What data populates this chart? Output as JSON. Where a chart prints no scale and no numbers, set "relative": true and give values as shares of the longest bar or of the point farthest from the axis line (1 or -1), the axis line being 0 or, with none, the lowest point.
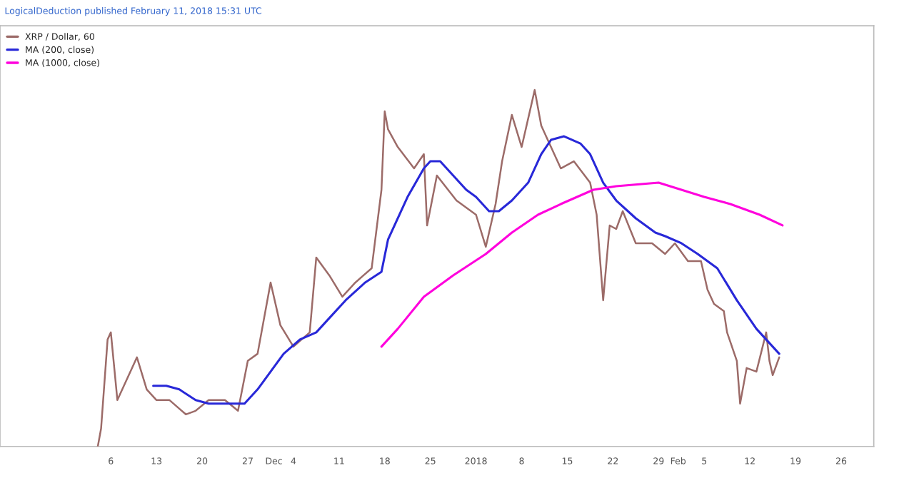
{
  "chart_data": {
    "type": "line",
    "title": "LogicalDeduction published February 11, 2018 15:31 UTC",
    "relative": true,
    "tick_labels": "x",
    "grid": false,
    "legend": "top left",
    "marker": "none",
    "line_style": "solid",
    "xlim": [
      "2017-10-20",
      "2018-03-03"
    ],
    "xticks": [
      {
        "value": "2017-11-06",
        "label": "6"
      },
      {
        "value": "2017-11-13",
        "label": "13"
      },
      {
        "value": "2017-11-20",
        "label": "20"
      },
      {
        "value": "2017-11-27",
        "label": "27"
      },
      {
        "value": "2017-12-01",
        "label": "Dec"
      },
      {
        "value": "2017-12-04",
        "label": "4"
      },
      {
        "value": "2017-12-11",
        "label": "11"
      },
      {
        "value": "2017-12-18",
        "label": "18"
      },
      {
        "value": "2017-12-25",
        "label": "25"
      },
      {
        "value": "2018-01-01",
        "label": "2018"
      },
      {
        "value": "2018-01-08",
        "label": "8"
      },
      {
        "value": "2018-01-15",
        "label": "15"
      },
      {
        "value": "2018-01-22",
        "label": "22"
      },
      {
        "value": "2018-01-29",
        "label": "29"
      },
      {
        "value": "2018-02-01",
        "label": "Feb"
      },
      {
        "value": "2018-02-05",
        "label": "5"
      },
      {
        "value": "2018-02-12",
        "label": "12"
      },
      {
        "value": "2018-02-19",
        "label": "19"
      },
      {
        "value": "2018-02-26",
        "label": "26"
      }
    ],
    "series": [
      {
        "name": "XRP / Dollar, 60",
        "color": "#9c6b68",
        "x": [
          "2017-11-04",
          "2017-11-04T12:00",
          "2017-11-05T12:00",
          "2017-11-06",
          "2017-11-07",
          "2017-11-08",
          "2017-11-10",
          "2017-11-11T12:00",
          "2017-11-13",
          "2017-11-15",
          "2017-11-17T12:00",
          "2017-11-19",
          "2017-11-21",
          "2017-11-23T12:00",
          "2017-11-25T12:00",
          "2017-11-27",
          "2017-11-28T12:00",
          "2017-11-30T12:00",
          "2017-12-02",
          "2017-12-04",
          "2017-12-06T12:00",
          "2017-12-07T12:00",
          "2017-12-09T12:00",
          "2017-12-11T12:00",
          "2017-12-13T12:00",
          "2017-12-16",
          "2017-12-17T12:00",
          "2017-12-18",
          "2017-12-18T12:00",
          "2017-12-20",
          "2017-12-22T12:00",
          "2017-12-24",
          "2017-12-24T12:00",
          "2017-12-26",
          "2017-12-29",
          "2018-01-01",
          "2018-01-02T12:00",
          "2018-01-04",
          "2018-01-05",
          "2018-01-06T12:00",
          "2018-01-08",
          "2018-01-10",
          "2018-01-11",
          "2018-01-12T12:00",
          "2018-01-14",
          "2018-01-16",
          "2018-01-18T12:00",
          "2018-01-19T12:00",
          "2018-01-20T12:00",
          "2018-01-21T12:00",
          "2018-01-22T12:00",
          "2018-01-23T12:00",
          "2018-01-25T12:00",
          "2018-01-28",
          "2018-01-30",
          "2018-01-31T12:00",
          "2018-02-02T12:00",
          "2018-02-04T12:00",
          "2018-02-05T12:00",
          "2018-02-06T12:00",
          "2018-02-08",
          "2018-02-08T12:00",
          "2018-02-10",
          "2018-02-10T12:00",
          "2018-02-11T12:00",
          "2018-02-13",
          "2018-02-14T12:00",
          "2018-02-15",
          "2018-02-15T12:00",
          "2018-02-16T12:00"
        ],
        "values": [
          0.0,
          0.05,
          0.3,
          0.32,
          0.13,
          0.17,
          0.25,
          0.16,
          0.13,
          0.13,
          0.09,
          0.1,
          0.13,
          0.13,
          0.1,
          0.24,
          0.26,
          0.46,
          0.34,
          0.28,
          0.32,
          0.53,
          0.48,
          0.42,
          0.46,
          0.5,
          0.72,
          0.94,
          0.89,
          0.84,
          0.78,
          0.82,
          0.62,
          0.76,
          0.69,
          0.65,
          0.56,
          0.68,
          0.8,
          0.93,
          0.84,
          1.0,
          0.9,
          0.84,
          0.78,
          0.8,
          0.74,
          0.65,
          0.41,
          0.62,
          0.61,
          0.66,
          0.57,
          0.57,
          0.54,
          0.57,
          0.52,
          0.52,
          0.44,
          0.4,
          0.38,
          0.32,
          0.24,
          0.12,
          0.22,
          0.21,
          0.32,
          0.24,
          0.2,
          0.25
        ]
      },
      {
        "name": "MA (200, close)",
        "color": "#2828d8",
        "x": [
          "2017-11-12T12:00",
          "2017-11-14T12:00",
          "2017-11-16T12:00",
          "2017-11-19",
          "2017-11-21",
          "2017-11-24T12:00",
          "2017-11-26T12:00",
          "2017-11-28T12:00",
          "2017-11-30T12:00",
          "2017-12-02T12:00",
          "2017-12-05",
          "2017-12-07T12:00",
          "2017-12-09T12:00",
          "2017-12-12",
          "2017-12-15",
          "2017-12-17T12:00",
          "2017-12-18T12:00",
          "2017-12-21T12:00",
          "2017-12-24",
          "2017-12-25",
          "2017-12-26T12:00",
          "2017-12-28T12:00",
          "2017-12-30T12:00",
          "2018-01-01",
          "2018-01-03",
          "2018-01-04T12:00",
          "2018-01-06T12:00",
          "2018-01-09",
          "2018-01-11",
          "2018-01-12T12:00",
          "2018-01-14T12:00",
          "2018-01-17",
          "2018-01-18T12:00",
          "2018-01-20T12:00",
          "2018-01-22T12:00",
          "2018-01-25T12:00",
          "2018-01-28T12:00",
          "2018-01-30",
          "2018-02-01T12:00",
          "2018-02-04",
          "2018-02-07",
          "2018-02-10",
          "2018-02-13",
          "2018-02-16T12:00"
        ],
        "values": [
          0.17,
          0.17,
          0.16,
          0.13,
          0.12,
          0.12,
          0.12,
          0.16,
          0.21,
          0.26,
          0.3,
          0.32,
          0.36,
          0.41,
          0.46,
          0.49,
          0.58,
          0.7,
          0.78,
          0.8,
          0.8,
          0.76,
          0.72,
          0.7,
          0.66,
          0.66,
          0.69,
          0.74,
          0.82,
          0.86,
          0.87,
          0.85,
          0.82,
          0.74,
          0.69,
          0.64,
          0.6,
          0.59,
          0.57,
          0.54,
          0.5,
          0.41,
          0.33,
          0.26
        ]
      },
      {
        "name": "MA (1000, close)",
        "color": "#ff00dd",
        "x": [
          "2017-12-17T12:00",
          "2017-12-20",
          "2017-12-24",
          "2017-12-28T12:00",
          "2018-01-02T12:00",
          "2018-01-06T12:00",
          "2018-01-10T12:00",
          "2018-01-14",
          "2018-01-19",
          "2018-01-22T12:00",
          "2018-01-29",
          "2018-02-01T12:00",
          "2018-02-05",
          "2018-02-09",
          "2018-02-13T12:00",
          "2018-02-17"
        ],
        "values": [
          0.28,
          0.33,
          0.42,
          0.48,
          0.54,
          0.6,
          0.65,
          0.68,
          0.72,
          0.73,
          0.74,
          0.72,
          0.7,
          0.68,
          0.65,
          0.62
        ]
      }
    ]
  }
}
